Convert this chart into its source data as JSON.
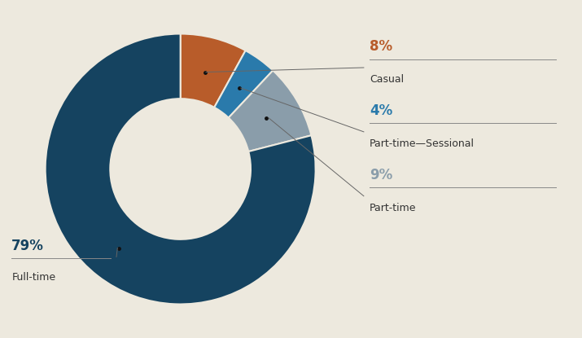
{
  "slices": [
    79,
    8,
    4,
    9
  ],
  "labels": [
    "Full-time",
    "Casual",
    "Part-time—Sessional",
    "Part-time"
  ],
  "colors": [
    "#154360",
    "#b85c2a",
    "#2a7aab",
    "#8a9daa"
  ],
  "pct_labels": [
    "79%",
    "8%",
    "4%",
    "9%"
  ],
  "pct_colors": [
    "#154360",
    "#b85c2a",
    "#2a7aab",
    "#8a9daa"
  ],
  "background_color": "#ede9de",
  "donut_width": 0.48
}
